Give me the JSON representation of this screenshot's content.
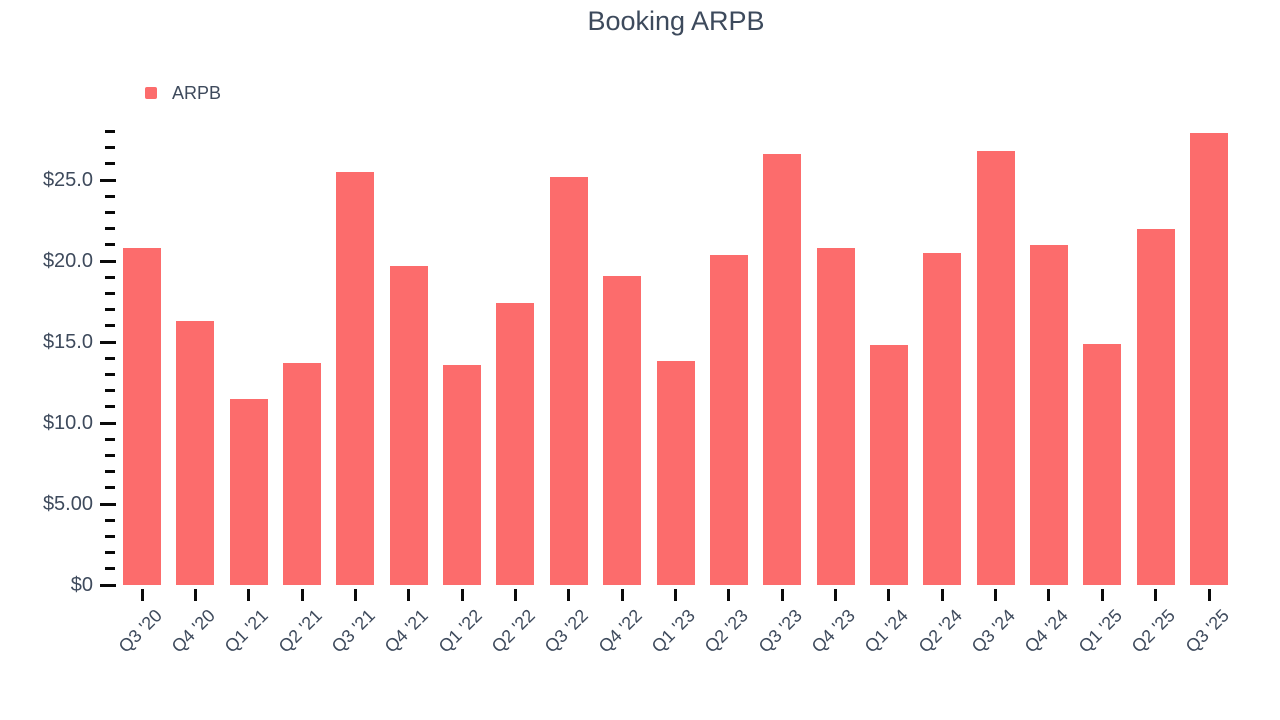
{
  "title": "Booking ARPB",
  "legend": {
    "items": [
      {
        "label": "ARPB",
        "color": "#fc6c6c"
      }
    ]
  },
  "chart_data": {
    "type": "bar",
    "title": "Booking ARPB",
    "categories": [
      "Q3 '20",
      "Q4 '20",
      "Q1 '21",
      "Q2 '21",
      "Q3 '21",
      "Q4 '21",
      "Q1 '22",
      "Q2 '22",
      "Q3 '22",
      "Q4 '22",
      "Q1 '23",
      "Q2 '23",
      "Q3 '23",
      "Q4 '23",
      "Q1 '24",
      "Q2 '24",
      "Q3 '24",
      "Q4 '24",
      "Q1 '25",
      "Q2 '25",
      "Q3 '25"
    ],
    "series": [
      {
        "name": "ARPB",
        "color": "#fc6c6c",
        "values": [
          20.8,
          16.3,
          11.5,
          13.7,
          25.5,
          19.7,
          13.6,
          17.4,
          25.2,
          19.1,
          13.8,
          20.4,
          26.6,
          20.8,
          14.8,
          20.5,
          26.8,
          21.0,
          14.9,
          22.0,
          27.9
        ]
      }
    ],
    "xlabel": "",
    "ylabel": "",
    "ylim": [
      0,
      28
    ],
    "y_major_ticks": [
      0,
      5,
      10,
      15,
      20,
      25
    ],
    "y_tick_labels": [
      "$0",
      "$5.00",
      "$10.0",
      "$15.0",
      "$20.0",
      "$25.0"
    ],
    "y_minor_tick_interval": 1,
    "grid": false,
    "legend_position": "top-left",
    "x_tick_rotation_deg": -45
  },
  "colors": {
    "bar": "#fc6c6c",
    "text": "#3e4a5c",
    "tick": "#0a0a0a",
    "background": "#ffffff"
  }
}
